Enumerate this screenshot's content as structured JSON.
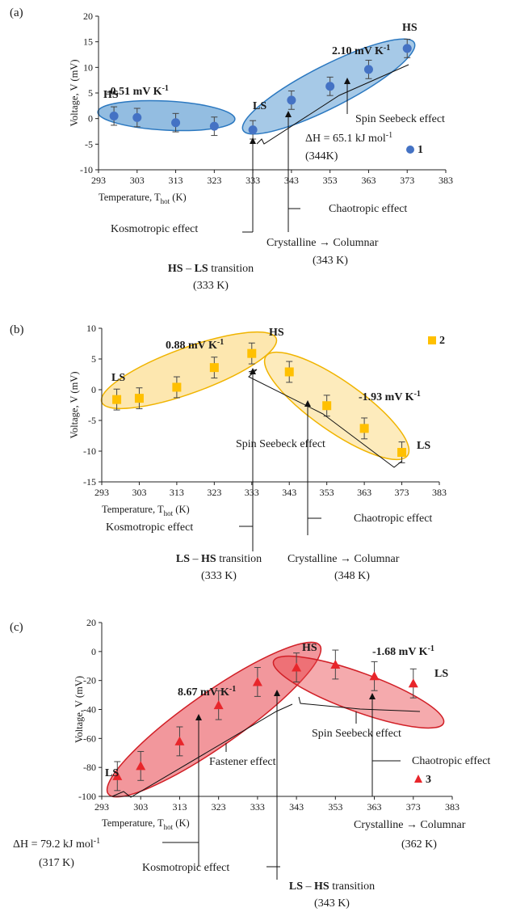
{
  "chart_data": [
    {
      "type": "scatter",
      "panel_label": "(a)",
      "xlabel": "Temperature, T",
      "xlabel_sub": "hot",
      "xlabel_unit": " (K)",
      "ylabel": "Voltage, V (mV)",
      "xlim": [
        293,
        383
      ],
      "ylim": [
        -10,
        20
      ],
      "xticks": [
        293,
        303,
        313,
        323,
        333,
        343,
        353,
        363,
        373,
        383
      ],
      "yticks": [
        -10,
        -5,
        0,
        5,
        10,
        15,
        20
      ],
      "grid": false,
      "legend_position": "bottom-right",
      "series": [
        {
          "name": "1",
          "marker": "circle",
          "color": "#4472c4",
          "x": [
            297,
            303,
            313,
            323,
            333,
            343,
            353,
            363,
            373
          ],
          "y": [
            0.5,
            0.2,
            -0.8,
            -1.5,
            -2.2,
            3.6,
            6.3,
            9.6,
            13.7
          ],
          "err": [
            1.8,
            1.8,
            1.8,
            1.8,
            1.8,
            1.8,
            1.8,
            1.8,
            1.8
          ]
        }
      ],
      "regions": [
        {
          "label_top": "HS",
          "label_slope": "-0.51 mV K",
          "slope_sup": "-1",
          "fill": "#3a87c9",
          "fill_opacity": 0.55,
          "stroke": "#2b78c0",
          "x_from": 293,
          "x_to": 339,
          "y_center": -0.2
        },
        {
          "label_top": "HS",
          "label_slope": "2.10 mV K",
          "slope_sup": "-1",
          "fill": "#3a87c9",
          "fill_opacity": 0.45,
          "stroke": "#2b78c0",
          "x_from": 328,
          "x_to": 378,
          "y_center": 5.8
        }
      ],
      "point_labels": [
        {
          "text": "LS",
          "x": 333,
          "y": 3.0
        }
      ],
      "annotations": {
        "spin_seebeck": "Spin Seebeck effect",
        "delta_h": "ΔH = 65.1 kJ mol",
        "delta_h_sup": "-1",
        "delta_h_temp": "(344K)",
        "chaotropic": "Chaotropic effect",
        "kosmotropic": "Kosmotropic effect",
        "cryst_columnar": "Crystalline → Columnar",
        "cryst_temp": "(343 K)",
        "transition_a": "HS",
        "transition_mid": " – ",
        "transition_b": "LS",
        "transition_word": " transition",
        "transition_temp": "(333 K)"
      }
    },
    {
      "type": "scatter",
      "panel_label": "(b)",
      "xlabel": "Temperature, T",
      "xlabel_sub": "hot",
      "xlabel_unit": " (K)",
      "ylabel": "Voltage, V (mV)",
      "xlim": [
        293,
        383
      ],
      "ylim": [
        -15,
        10
      ],
      "xticks": [
        293,
        303,
        313,
        323,
        333,
        343,
        353,
        363,
        373,
        383
      ],
      "yticks": [
        -15,
        -10,
        -5,
        0,
        5,
        10
      ],
      "grid": false,
      "legend_position": "top-right",
      "series": [
        {
          "name": "2",
          "marker": "square",
          "color": "#ffc000",
          "x": [
            297,
            303,
            313,
            323,
            333,
            343,
            353,
            363,
            373
          ],
          "y": [
            -1.6,
            -1.4,
            0.4,
            3.6,
            5.9,
            2.9,
            -2.6,
            -6.3,
            -10.2
          ],
          "err": [
            1.7,
            1.7,
            1.7,
            1.7,
            1.7,
            1.7,
            1.7,
            1.7,
            1.7
          ]
        }
      ],
      "regions": [
        {
          "label_top": "LS",
          "label_slope": "0.88 mV K",
          "slope_sup": "-1",
          "fill": "#fbd77a",
          "fill_opacity": 0.6,
          "stroke": "#f0b400",
          "x_from": 293,
          "x_to": 339,
          "y_center": 1.6
        },
        {
          "label_top": "LS",
          "label_slope": "-1.93 mV K",
          "slope_sup": "-1",
          "fill": "#fbd77a",
          "fill_opacity": 0.5,
          "stroke": "#f0b400",
          "x_from": 328,
          "x_to": 378,
          "y_center": -2.0
        }
      ],
      "point_labels": [
        {
          "text": "HS",
          "x": 333,
          "y": 8.6
        }
      ],
      "annotations": {
        "spin_seebeck": "Spin Seebeck effect",
        "chaotropic": "Chaotropic effect",
        "kosmotropic": "Kosmotropic effect",
        "cryst_columnar": "Crystalline → Columnar",
        "cryst_temp": "(348 K)",
        "transition_a": "LS",
        "transition_mid": " – ",
        "transition_b": "HS",
        "transition_word": " transition",
        "transition_temp": "(333 K)"
      }
    },
    {
      "type": "scatter",
      "panel_label": "(c)",
      "xlabel": "Temperature, T",
      "xlabel_sub": "hot",
      "xlabel_unit": " (K)",
      "ylabel": "Voltage, V (mV)",
      "xlim": [
        293,
        383
      ],
      "ylim": [
        -100,
        20
      ],
      "xticks": [
        293,
        303,
        313,
        323,
        333,
        343,
        353,
        363,
        373,
        383
      ],
      "yticks": [
        -100,
        -80,
        -60,
        -40,
        -20,
        0,
        20
      ],
      "grid": false,
      "legend_position": "bottom-right",
      "series": [
        {
          "name": "3",
          "marker": "triangle",
          "color": "#e8262b",
          "x": [
            297,
            303,
            313,
            323,
            333,
            343,
            353,
            363,
            373
          ],
          "y": [
            -86,
            -79,
            -62,
            -37,
            -21,
            -11,
            -9,
            -17,
            -22
          ],
          "err": [
            10,
            10,
            10,
            10,
            10,
            10,
            10,
            10,
            10
          ]
        }
      ],
      "regions": [
        {
          "label_top": "LS",
          "label_slope": "8.67 mV K",
          "slope_sup": "-1",
          "fill": "#e8424a",
          "fill_opacity": 0.55,
          "stroke": "#d11f26",
          "x_from": 293,
          "x_to": 349,
          "y_center": -46
        },
        {
          "label_top": "LS",
          "label_slope": "-1.68 mV K",
          "slope_sup": "-1",
          "fill": "#e8424a",
          "fill_opacity": 0.45,
          "stroke": "#d11f26",
          "x_from": 341,
          "x_to": 381,
          "y_center": -16
        }
      ],
      "point_labels": [
        {
          "text": "HS",
          "x": 343,
          "y": 3.5
        }
      ],
      "annotations": {
        "spin_seebeck": "Spin Seebeck effect",
        "fastener": "Fastener effect",
        "chaotropic": "Chaotropic effect",
        "delta_h": "ΔH = 79.2 kJ mol",
        "delta_h_sup": "-1",
        "delta_h_temp": "(317 K)",
        "kosmotropic": "Kosmotropic effect",
        "cryst_columnar": "Crystalline → Columnar",
        "cryst_temp": "(362 K)",
        "transition_a": "LS",
        "transition_mid": " – ",
        "transition_b": "HS",
        "transition_word": " transition",
        "transition_temp": "(343 K)"
      }
    }
  ]
}
